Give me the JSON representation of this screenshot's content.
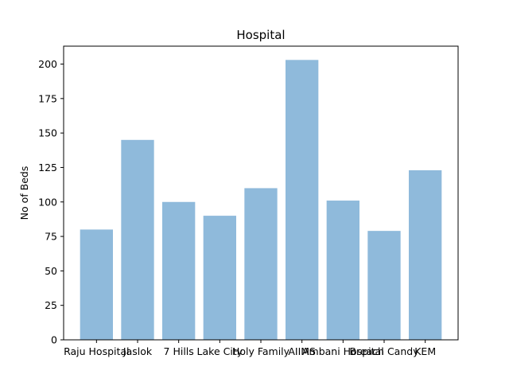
{
  "chart_data": {
    "type": "bar",
    "title": "Hospital",
    "xlabel": "",
    "ylabel": "No of Beds",
    "categories": [
      "Raju Hospital",
      "Jaslok",
      "7 Hills",
      "Lake City",
      "Holy Family",
      "AIIMS",
      "Ambani Hospital",
      "Breach Candy",
      "KEM"
    ],
    "values": [
      80,
      145,
      100,
      90,
      110,
      203,
      101,
      79,
      123
    ],
    "ylim": [
      0,
      213
    ],
    "yticks": [
      0,
      25,
      50,
      75,
      100,
      125,
      150,
      175,
      200
    ],
    "bar_color": "#8fbadb",
    "grid": false,
    "legend": "none"
  }
}
